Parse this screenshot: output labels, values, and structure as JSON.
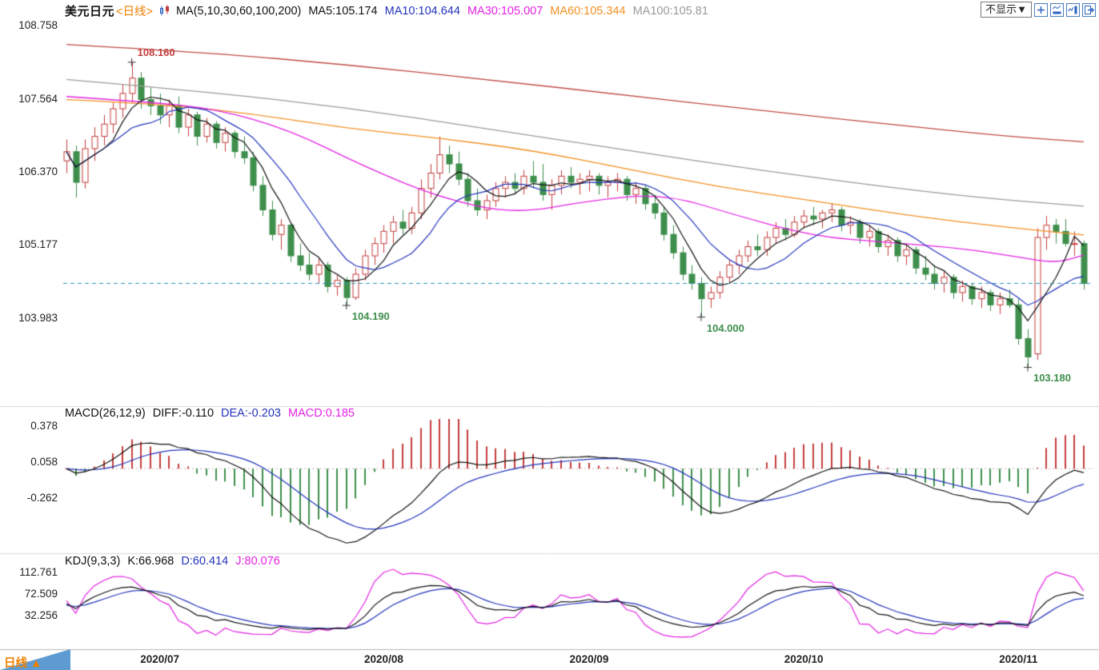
{
  "header": {
    "symbol": "美元日元",
    "period_tag": "<日线>",
    "ma_group": "MA(5,10,30,60,100,200)",
    "ma5": "MA5:105.174",
    "ma10": "MA10:104.644",
    "ma30": "MA30:105.007",
    "ma60": "MA60:105.344",
    "ma100": "MA100:105.81"
  },
  "toolbar": {
    "dropdown": "不显示▼",
    "icons": [
      "add-pane-icon",
      "pane-bottom-icon",
      "pane-right-icon",
      "expand-pane-icon"
    ]
  },
  "macd_header": {
    "label": "MACD(26,12,9)",
    "diff": "DIFF:-0.110",
    "dea": "DEA:-0.203",
    "macd": "MACD:0.185"
  },
  "kdj_header": {
    "label": "KDJ(9,3,3)",
    "k": "K:66.968",
    "d": "D:60.414",
    "j": "J:80.076"
  },
  "footer": {
    "period_label": "日线 ▲"
  },
  "chart_data": [
    {
      "type": "candlestick",
      "title": "美元日元 日线 (USD/JPY Daily) with MA(5,10,30,60,100,200)",
      "y_ticks": [
        "108.758",
        "107.564",
        "106.370",
        "105.177",
        "103.983"
      ],
      "x_month_labels": [
        {
          "label": "2020/07",
          "index": 10
        },
        {
          "label": "2020/08",
          "index": 34
        },
        {
          "label": "2020/09",
          "index": 56
        },
        {
          "label": "2020/10",
          "index": 79
        },
        {
          "label": "2020/11",
          "index": 102
        }
      ],
      "last_price_line": {
        "value": 104.55,
        "color": "#2a8fc0"
      },
      "annotations": [
        {
          "text": "108.160",
          "index": 7,
          "price": 108.16,
          "color": "#c23c3c",
          "side": "above"
        },
        {
          "text": "104.190",
          "index": 30,
          "price": 104.19,
          "color": "#3e8e4c",
          "side": "below"
        },
        {
          "text": "104.000",
          "index": 68,
          "price": 104.0,
          "color": "#3e8e4c",
          "side": "below"
        },
        {
          "text": "103.180",
          "index": 103,
          "price": 103.18,
          "color": "#3e8e4c",
          "side": "below"
        }
      ],
      "colors": {
        "up": "#c43c3c",
        "down": "#3e8e4c",
        "ma5": "#111111",
        "ma10": "#2233bb"
      },
      "ma_computed": [
        {
          "name": "MA5",
          "period": 5,
          "color": "#111111"
        },
        {
          "name": "MA10",
          "period": 10,
          "color": "#2233bb"
        }
      ],
      "ma_overlays": [
        {
          "name": "MA30",
          "color": "#e322e3",
          "points": [
            [
              0,
              107.6
            ],
            [
              8,
              107.52
            ],
            [
              16,
              107.4
            ],
            [
              24,
              107.05
            ],
            [
              32,
              106.45
            ],
            [
              40,
              105.95
            ],
            [
              48,
              105.68
            ],
            [
              56,
              105.9
            ],
            [
              64,
              106.02
            ],
            [
              72,
              105.65
            ],
            [
              80,
              105.32
            ],
            [
              88,
              105.22
            ],
            [
              96,
              105.12
            ],
            [
              102,
              104.98
            ],
            [
              106,
              104.88
            ],
            [
              109,
              105.01
            ]
          ]
        },
        {
          "name": "MA60",
          "color": "#f29021",
          "points": [
            [
              0,
              107.55
            ],
            [
              10,
              107.48
            ],
            [
              20,
              107.32
            ],
            [
              30,
              107.08
            ],
            [
              40,
              106.92
            ],
            [
              50,
              106.72
            ],
            [
              60,
              106.42
            ],
            [
              70,
              106.12
            ],
            [
              80,
              105.9
            ],
            [
              90,
              105.66
            ],
            [
              100,
              105.48
            ],
            [
              109,
              105.34
            ]
          ]
        },
        {
          "name": "MA100",
          "color": "#9b9b9b",
          "points": [
            [
              0,
              107.88
            ],
            [
              15,
              107.68
            ],
            [
              30,
              107.42
            ],
            [
              45,
              107.08
            ],
            [
              60,
              106.72
            ],
            [
              75,
              106.38
            ],
            [
              90,
              106.08
            ],
            [
              100,
              105.92
            ],
            [
              109,
              105.81
            ]
          ]
        },
        {
          "name": "MA200",
          "color": "#bf4a42",
          "points": [
            [
              0,
              108.45
            ],
            [
              15,
              108.32
            ],
            [
              30,
              108.12
            ],
            [
              45,
              107.88
            ],
            [
              60,
              107.62
            ],
            [
              75,
              107.36
            ],
            [
              90,
              107.12
            ],
            [
              100,
              106.96
            ],
            [
              109,
              106.86
            ]
          ]
        }
      ],
      "candles": [
        [
          106.55,
          106.9,
          106.35,
          106.7
        ],
        [
          106.7,
          106.8,
          105.95,
          106.2
        ],
        [
          106.2,
          106.9,
          106.1,
          106.75
        ],
        [
          106.75,
          107.1,
          106.55,
          106.95
        ],
        [
          106.95,
          107.3,
          106.8,
          107.15
        ],
        [
          107.15,
          107.5,
          107.0,
          107.4
        ],
        [
          107.4,
          107.8,
          107.25,
          107.65
        ],
        [
          107.65,
          108.16,
          107.5,
          107.9
        ],
        [
          107.9,
          108.0,
          107.4,
          107.55
        ],
        [
          107.55,
          107.75,
          107.3,
          107.45
        ],
        [
          107.45,
          107.65,
          107.15,
          107.3
        ],
        [
          107.3,
          107.55,
          107.1,
          107.45
        ],
        [
          107.45,
          107.6,
          107.0,
          107.1
        ],
        [
          107.1,
          107.4,
          106.95,
          107.3
        ],
        [
          107.3,
          107.35,
          106.8,
          106.95
        ],
        [
          106.95,
          107.25,
          106.85,
          107.15
        ],
        [
          107.15,
          107.2,
          106.75,
          106.85
        ],
        [
          106.85,
          107.1,
          106.7,
          107.0
        ],
        [
          107.0,
          107.05,
          106.6,
          106.7
        ],
        [
          106.7,
          106.95,
          106.5,
          106.6
        ],
        [
          106.6,
          106.7,
          106.05,
          106.15
        ],
        [
          106.15,
          106.3,
          105.65,
          105.75
        ],
        [
          105.75,
          105.9,
          105.25,
          105.35
        ],
        [
          105.35,
          105.6,
          105.1,
          105.5
        ],
        [
          105.5,
          105.55,
          104.9,
          105.0
        ],
        [
          105.0,
          105.2,
          104.75,
          104.85
        ],
        [
          104.85,
          105.05,
          104.6,
          104.7
        ],
        [
          104.7,
          104.95,
          104.55,
          104.85
        ],
        [
          104.85,
          104.9,
          104.4,
          104.5
        ],
        [
          104.5,
          104.7,
          104.35,
          104.6
        ],
        [
          104.6,
          104.65,
          104.19,
          104.32
        ],
        [
          104.32,
          104.8,
          104.28,
          104.7
        ],
        [
          104.7,
          105.1,
          104.6,
          105.0
        ],
        [
          105.0,
          105.3,
          104.85,
          105.2
        ],
        [
          105.2,
          105.5,
          105.05,
          105.4
        ],
        [
          105.4,
          105.65,
          105.2,
          105.55
        ],
        [
          105.55,
          105.75,
          105.35,
          105.45
        ],
        [
          105.45,
          105.8,
          105.35,
          105.7
        ],
        [
          105.7,
          106.25,
          105.6,
          106.1
        ],
        [
          106.1,
          106.5,
          105.95,
          106.35
        ],
        [
          106.35,
          106.95,
          106.25,
          106.65
        ],
        [
          106.65,
          106.8,
          106.35,
          106.5
        ],
        [
          106.5,
          106.7,
          106.15,
          106.25
        ],
        [
          106.25,
          106.35,
          105.8,
          105.9
        ],
        [
          105.9,
          106.1,
          105.65,
          105.75
        ],
        [
          105.75,
          106.0,
          105.6,
          105.9
        ],
        [
          105.9,
          106.2,
          105.8,
          106.1
        ],
        [
          106.1,
          106.3,
          105.95,
          106.2
        ],
        [
          106.2,
          106.35,
          106.0,
          106.1
        ],
        [
          106.1,
          106.4,
          106.0,
          106.3
        ],
        [
          106.3,
          106.55,
          106.1,
          106.2
        ],
        [
          106.2,
          106.5,
          105.9,
          106.0
        ],
        [
          106.0,
          106.25,
          105.75,
          106.15
        ],
        [
          106.15,
          106.4,
          106.0,
          106.3
        ],
        [
          106.3,
          106.45,
          106.1,
          106.2
        ],
        [
          106.2,
          106.35,
          106.0,
          106.25
        ],
        [
          106.25,
          106.4,
          106.05,
          106.3
        ],
        [
          106.3,
          106.35,
          106.0,
          106.15
        ],
        [
          106.15,
          106.3,
          105.95,
          106.2
        ],
        [
          106.2,
          106.35,
          106.05,
          106.25
        ],
        [
          106.25,
          106.3,
          105.9,
          106.0
        ],
        [
          106.0,
          106.2,
          105.85,
          106.1
        ],
        [
          106.1,
          106.15,
          105.75,
          105.85
        ],
        [
          105.85,
          106.0,
          105.6,
          105.7
        ],
        [
          105.7,
          105.8,
          105.25,
          105.35
        ],
        [
          105.35,
          105.5,
          104.95,
          105.05
        ],
        [
          105.05,
          105.15,
          104.6,
          104.7
        ],
        [
          104.7,
          104.85,
          104.45,
          104.55
        ],
        [
          104.55,
          104.65,
          104.0,
          104.3
        ],
        [
          104.3,
          104.5,
          104.15,
          104.4
        ],
        [
          104.4,
          104.75,
          104.3,
          104.65
        ],
        [
          104.65,
          104.95,
          104.55,
          104.85
        ],
        [
          104.85,
          105.1,
          104.7,
          105.0
        ],
        [
          105.0,
          105.25,
          104.9,
          105.15
        ],
        [
          105.15,
          105.35,
          105.0,
          105.1
        ],
        [
          105.1,
          105.4,
          105.0,
          105.3
        ],
        [
          105.3,
          105.55,
          105.2,
          105.45
        ],
        [
          105.45,
          105.6,
          105.25,
          105.35
        ],
        [
          105.35,
          105.65,
          105.3,
          105.55
        ],
        [
          105.55,
          105.75,
          105.45,
          105.65
        ],
        [
          105.65,
          105.8,
          105.5,
          105.6
        ],
        [
          105.6,
          105.75,
          105.45,
          105.7
        ],
        [
          105.7,
          105.85,
          105.55,
          105.75
        ],
        [
          105.75,
          105.8,
          105.4,
          105.5
        ],
        [
          105.5,
          105.65,
          105.35,
          105.55
        ],
        [
          105.55,
          105.6,
          105.2,
          105.3
        ],
        [
          105.3,
          105.5,
          105.15,
          105.4
        ],
        [
          105.4,
          105.45,
          105.05,
          105.15
        ],
        [
          105.15,
          105.35,
          105.0,
          105.25
        ],
        [
          105.25,
          105.3,
          104.9,
          105.0
        ],
        [
          105.0,
          105.2,
          104.85,
          105.1
        ],
        [
          105.1,
          105.15,
          104.7,
          104.8
        ],
        [
          104.8,
          105.0,
          104.6,
          104.7
        ],
        [
          104.7,
          104.85,
          104.45,
          104.55
        ],
        [
          104.55,
          104.75,
          104.4,
          104.65
        ],
        [
          104.65,
          104.7,
          104.3,
          104.4
        ],
        [
          104.4,
          104.6,
          104.25,
          104.5
        ],
        [
          104.5,
          104.55,
          104.2,
          104.3
        ],
        [
          104.3,
          104.5,
          104.15,
          104.4
        ],
        [
          104.4,
          104.45,
          104.1,
          104.2
        ],
        [
          104.2,
          104.4,
          104.05,
          104.3
        ],
        [
          104.3,
          104.45,
          104.15,
          104.2
        ],
        [
          104.2,
          104.3,
          103.55,
          103.65
        ],
        [
          103.65,
          103.8,
          103.18,
          103.35
        ],
        [
          103.4,
          105.45,
          103.3,
          105.3
        ],
        [
          105.3,
          105.65,
          105.1,
          105.5
        ],
        [
          105.5,
          105.6,
          105.2,
          105.4
        ],
        [
          105.4,
          105.6,
          105.15,
          105.2
        ],
        [
          105.2,
          105.4,
          105.0,
          105.2
        ],
        [
          105.2,
          105.25,
          104.45,
          104.55
        ]
      ]
    },
    {
      "type": "bar",
      "title": "MACD(26,12,9)",
      "y_ticks": [
        "0.378",
        "0.058",
        "-0.262"
      ],
      "latest": {
        "diff": -0.11,
        "dea": -0.203,
        "macd": 0.185
      },
      "derived_from": "chart_data[0].candles (DIFF=EMA12-EMA26, DEA=EMA9(DIFF), bar=2*(DIFF-DEA))",
      "colors": {
        "diff": "#111111",
        "dea": "#2233bb",
        "pos": "#c43c3c",
        "neg": "#3e8e4c"
      }
    },
    {
      "type": "line",
      "title": "KDJ(9,3,3)",
      "y_ticks": [
        "112.761",
        "72.509",
        "32.256"
      ],
      "latest": {
        "k": 66.968,
        "d": 60.414,
        "j": 80.076
      },
      "derived_from": "chart_data[0].candles (standard KDJ 9,3,3)",
      "colors": {
        "k": "#111111",
        "d": "#2233bb",
        "j": "#e322e3"
      }
    }
  ]
}
